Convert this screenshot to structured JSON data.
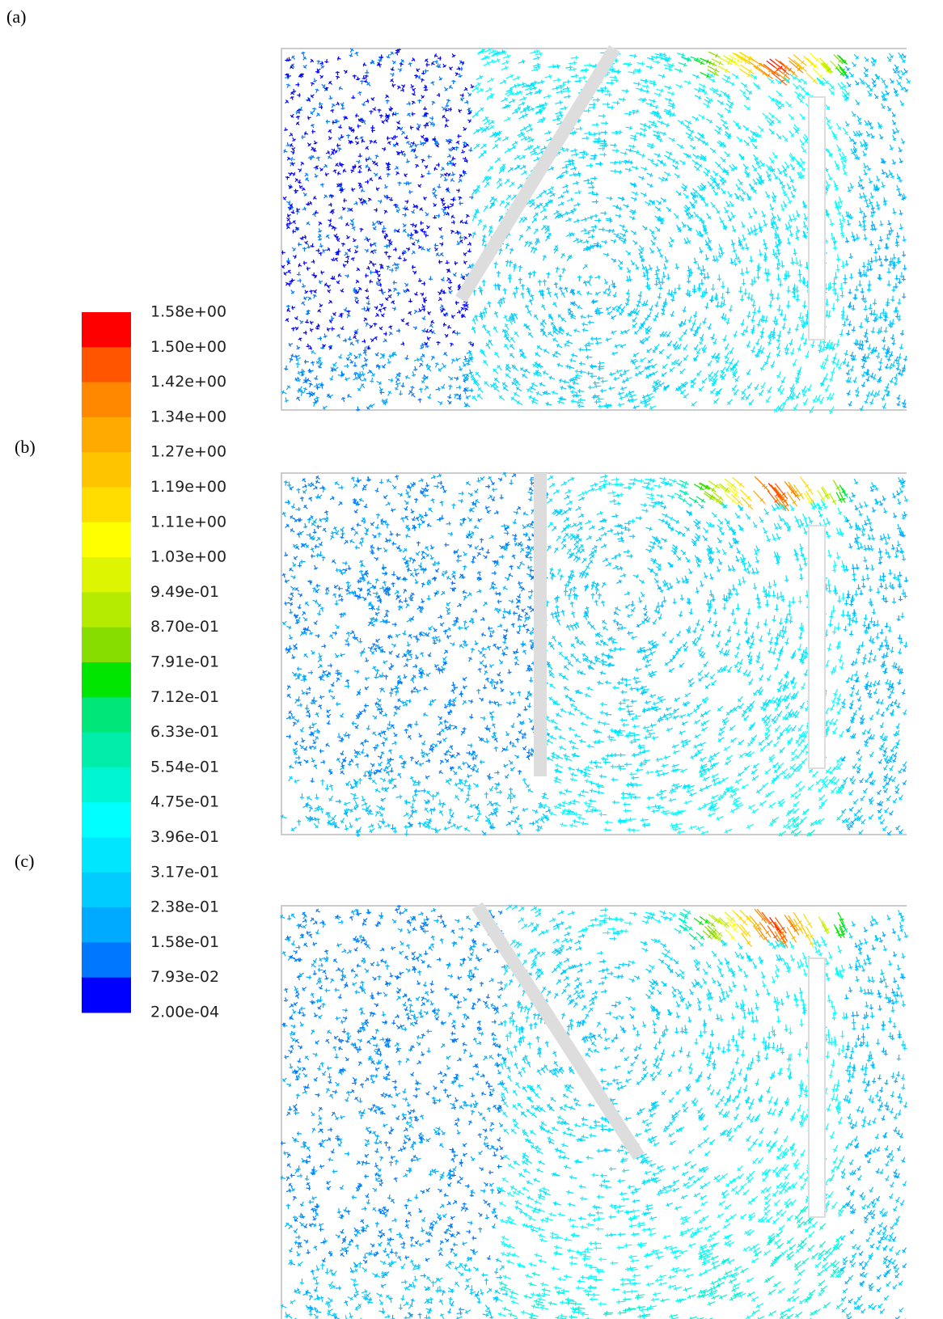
{
  "figure": {
    "panel_labels": [
      "(a)",
      "(b)",
      "(c)"
    ],
    "colorbar": {
      "labels": [
        "1.58e+00",
        "1.50e+00",
        "1.42e+00",
        "1.34e+00",
        "1.27e+00",
        "1.19e+00",
        "1.11e+00",
        "1.03e+00",
        "9.49e-01",
        "8.70e-01",
        "7.91e-01",
        "7.12e-01",
        "6.33e-01",
        "5.54e-01",
        "4.75e-01",
        "3.96e-01",
        "3.17e-01",
        "2.38e-01",
        "1.58e-01",
        "7.93e-02",
        "2.00e-04"
      ],
      "colors": [
        "#ff0000",
        "#ff5500",
        "#ff8800",
        "#ffaa00",
        "#ffc400",
        "#ffdd00",
        "#ffff00",
        "#ddf500",
        "#b4eb00",
        "#88dd00",
        "#00e600",
        "#00e678",
        "#00eeaa",
        "#00f5d2",
        "#00ffff",
        "#00e6ff",
        "#00ccff",
        "#00aaff",
        "#0077ff",
        "#0000ff"
      ]
    }
  }
}
